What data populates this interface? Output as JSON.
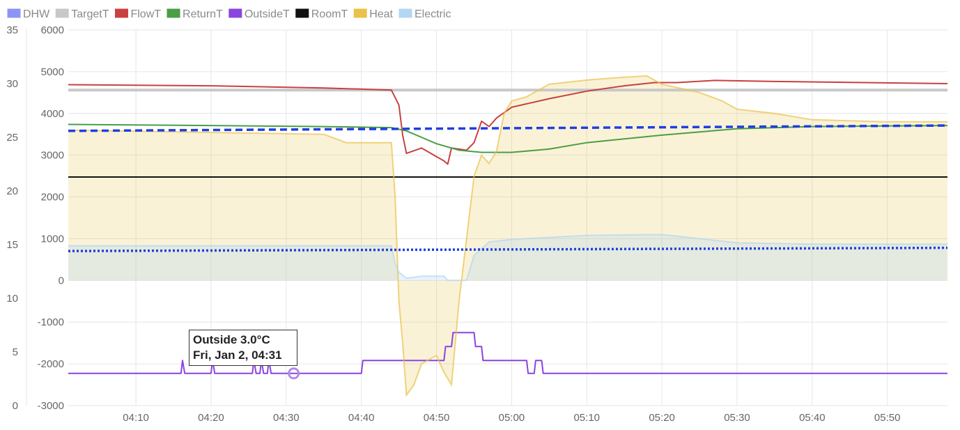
{
  "chart_data": {
    "type": "line",
    "title": "",
    "legend_placement": "top-left",
    "grid": true,
    "x": {
      "range": [
        "04:01",
        "05:58"
      ],
      "tick_labels": [
        "04:10",
        "04:20",
        "04:30",
        "04:40",
        "04:50",
        "05:00",
        "05:10",
        "05:20",
        "05:30",
        "05:40",
        "05:50"
      ]
    },
    "y_temperature": {
      "range": [
        0,
        35
      ],
      "tick_labels": [
        "0",
        "5",
        "10",
        "15",
        "20",
        "25",
        "30",
        "35"
      ]
    },
    "y_power": {
      "range": [
        -3000,
        6000
      ],
      "tick_labels": [
        "-3000",
        "-2000",
        "-1000",
        "0",
        "1000",
        "2000",
        "3000",
        "4000",
        "5000",
        "6000"
      ]
    },
    "series": [
      {
        "name": "DHW",
        "color": "#8c94f5",
        "axis": "temperature",
        "points": []
      },
      {
        "name": "TargetT",
        "color": "#c8c8c8",
        "axis": "temperature",
        "points": [
          [
            "04:01",
            29.4
          ],
          [
            "05:58",
            29.4
          ]
        ]
      },
      {
        "name": "FlowT",
        "color": "#c94040",
        "axis": "temperature",
        "points": [
          [
            "04:01",
            29.9
          ],
          [
            "04:20",
            29.8
          ],
          [
            "04:35",
            29.6
          ],
          [
            "04:44",
            29.4
          ],
          [
            "04:45",
            28.0
          ],
          [
            "04:45.5",
            25.2
          ],
          [
            "04:46",
            23.5
          ],
          [
            "04:48",
            24.0
          ],
          [
            "04:50",
            23.2
          ],
          [
            "04:51",
            22.8
          ],
          [
            "04:51.5",
            22.5
          ],
          [
            "04:52",
            24.0
          ],
          [
            "04:54",
            23.8
          ],
          [
            "04:55",
            24.5
          ],
          [
            "04:56",
            26.5
          ],
          [
            "04:57",
            26.0
          ],
          [
            "04:58",
            26.8
          ],
          [
            "05:00",
            27.8
          ],
          [
            "05:05",
            28.6
          ],
          [
            "05:10",
            29.3
          ],
          [
            "05:15",
            29.8
          ],
          [
            "05:19",
            30.1
          ],
          [
            "05:22",
            30.1
          ],
          [
            "05:27",
            30.3
          ],
          [
            "05:35",
            30.2
          ],
          [
            "05:58",
            30.0
          ]
        ]
      },
      {
        "name": "ReturnT",
        "color": "#4a9e44",
        "axis": "temperature",
        "points": [
          [
            "04:01",
            26.2
          ],
          [
            "04:20",
            26.1
          ],
          [
            "04:35",
            26.0
          ],
          [
            "04:44",
            25.9
          ],
          [
            "04:46",
            25.6
          ],
          [
            "04:48",
            25.0
          ],
          [
            "04:50",
            24.4
          ],
          [
            "04:53",
            23.8
          ],
          [
            "04:56",
            23.6
          ],
          [
            "05:00",
            23.6
          ],
          [
            "05:05",
            23.9
          ],
          [
            "05:10",
            24.5
          ],
          [
            "05:20",
            25.2
          ],
          [
            "05:30",
            25.8
          ],
          [
            "05:40",
            26.0
          ],
          [
            "05:58",
            26.1
          ]
        ]
      },
      {
        "name": "OutsideT",
        "color": "#8a44e0",
        "axis": "temperature",
        "points": [
          [
            "04:01",
            3.0
          ],
          [
            "04:16",
            3.0
          ],
          [
            "04:16.2",
            4.2
          ],
          [
            "04:16.5",
            3.0
          ],
          [
            "04:20",
            3.0
          ],
          [
            "04:20.2",
            4.2
          ],
          [
            "04:20.5",
            3.0
          ],
          [
            "04:25.5",
            3.0
          ],
          [
            "04:25.7",
            4.2
          ],
          [
            "04:26",
            3.0
          ],
          [
            "04:26.5",
            3.0
          ],
          [
            "04:26.7",
            4.2
          ],
          [
            "04:27",
            3.0
          ],
          [
            "04:27.5",
            3.0
          ],
          [
            "04:27.7",
            4.2
          ],
          [
            "04:28",
            3.0
          ],
          [
            "04:40",
            3.0
          ],
          [
            "04:40.2",
            4.2
          ],
          [
            "04:51",
            4.2
          ],
          [
            "04:51.2",
            5.5
          ],
          [
            "04:52",
            5.5
          ],
          [
            "04:52.2",
            6.8
          ],
          [
            "04:55",
            6.8
          ],
          [
            "04:55.2",
            5.5
          ],
          [
            "04:56",
            5.5
          ],
          [
            "04:56.2",
            4.2
          ],
          [
            "05:02",
            4.2
          ],
          [
            "05:02.2",
            3.0
          ],
          [
            "05:03",
            3.0
          ],
          [
            "05:03.2",
            4.2
          ],
          [
            "05:04",
            4.2
          ],
          [
            "05:04.2",
            3.0
          ],
          [
            "05:58",
            3.0
          ]
        ]
      },
      {
        "name": "RoomT",
        "color": "#111111",
        "axis": "temperature",
        "points": [
          [
            "04:01",
            21.3
          ],
          [
            "05:58",
            21.3
          ]
        ]
      },
      {
        "name": "Heat",
        "color": "#e8c24a",
        "axis": "power",
        "fill": true,
        "points": [
          [
            "04:01",
            3600
          ],
          [
            "04:35",
            3500
          ],
          [
            "04:38",
            3300
          ],
          [
            "04:44",
            3300
          ],
          [
            "04:44.5",
            2000
          ],
          [
            "04:45",
            -500
          ],
          [
            "04:45.5",
            -1500
          ],
          [
            "04:46",
            -2750
          ],
          [
            "04:47",
            -2500
          ],
          [
            "04:48",
            -2000
          ],
          [
            "04:50",
            -1800
          ],
          [
            "04:51",
            -2200
          ],
          [
            "04:52",
            -2500
          ],
          [
            "04:52.5",
            -1500
          ],
          [
            "04:53",
            -500
          ],
          [
            "04:54",
            1000
          ],
          [
            "04:55",
            2500
          ],
          [
            "04:56",
            3000
          ],
          [
            "04:57",
            2800
          ],
          [
            "04:58",
            3100
          ],
          [
            "04:59",
            4000
          ],
          [
            "05:00",
            4300
          ],
          [
            "05:02",
            4400
          ],
          [
            "05:05",
            4700
          ],
          [
            "05:10",
            4800
          ],
          [
            "05:15",
            4870
          ],
          [
            "05:18",
            4900
          ],
          [
            "05:20",
            4700
          ],
          [
            "05:25",
            4500
          ],
          [
            "05:28",
            4300
          ],
          [
            "05:30",
            4100
          ],
          [
            "05:35",
            4000
          ],
          [
            "05:40",
            3850
          ],
          [
            "05:50",
            3800
          ],
          [
            "05:58",
            3800
          ]
        ]
      },
      {
        "name": "Electric",
        "color": "#b3d6f2",
        "axis": "power",
        "fill": true,
        "points": [
          [
            "04:01",
            830
          ],
          [
            "04:44",
            830
          ],
          [
            "04:44.5",
            400
          ],
          [
            "04:45",
            200
          ],
          [
            "04:46",
            50
          ],
          [
            "04:48",
            100
          ],
          [
            "04:51",
            100
          ],
          [
            "04:51.5",
            0
          ],
          [
            "04:54",
            0
          ],
          [
            "04:55",
            600
          ],
          [
            "04:57",
            920
          ],
          [
            "05:00",
            980
          ],
          [
            "05:10",
            1080
          ],
          [
            "05:20",
            1100
          ],
          [
            "05:25",
            1000
          ],
          [
            "05:30",
            900
          ],
          [
            "05:40",
            870
          ],
          [
            "05:58",
            870
          ]
        ]
      },
      {
        "name": "",
        "color": "#1f3fe0",
        "axis": "temperature",
        "style": "dashed",
        "points": [
          [
            "04:01",
            25.6
          ],
          [
            "05:58",
            26.1
          ]
        ]
      },
      {
        "name": "",
        "color": "#1f3fe0",
        "axis": "temperature",
        "style": "dotted",
        "points": [
          [
            "04:01",
            14.4
          ],
          [
            "05:58",
            14.7
          ]
        ]
      }
    ],
    "tooltip": {
      "line1": "Outside 3.0°C",
      "line2": "Fri, Jan 2, 04:31"
    }
  }
}
